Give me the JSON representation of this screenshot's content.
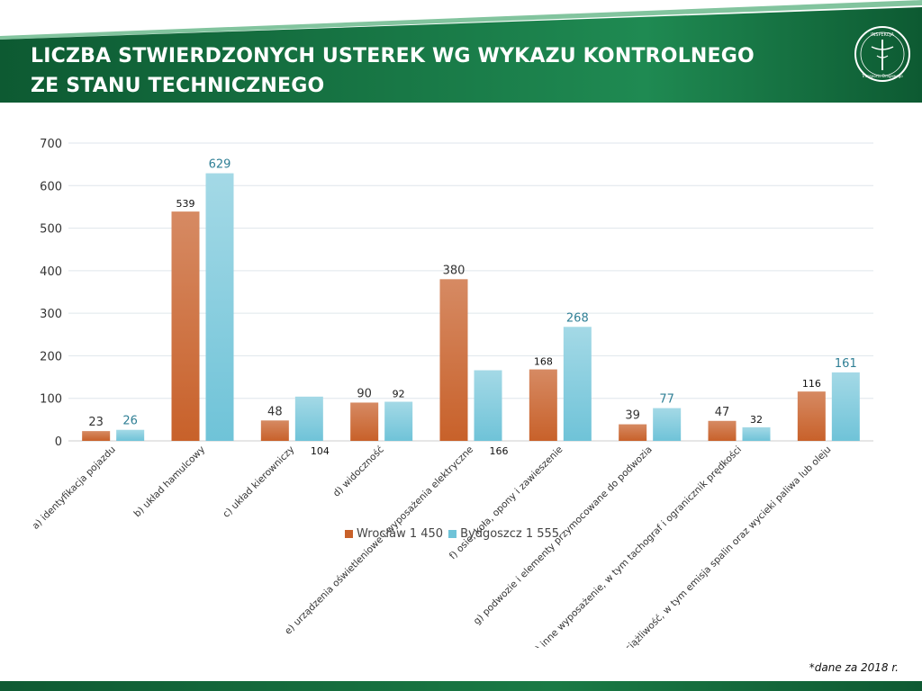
{
  "header": {
    "title_line1": "LICZBA STWIERDZONYCH USTEREK WG WYKAZU KONTROLNEGO",
    "title_line2": "ZE STANU TECHNICZNEGO",
    "logo_text_top": "INSPEKCJA",
    "logo_text_bottom": "Transportu Drogowego"
  },
  "colors": {
    "header_dark": "#0d5a32",
    "header_light": "#1f8a52",
    "wroclaw": "#c8612a",
    "bydgoszcz": "#6fc3d8"
  },
  "chart_data": {
    "type": "bar",
    "title": "LICZBA STWIERDZONYCH USTEREK WG WYKAZU KONTROLNEGO ZE STANU TECHNICZNEGO",
    "categories": [
      "a) identyfikacja pojazdu",
      "b) układ hamulcowy",
      "c) układ kierowniczy",
      "d) widoczność",
      "e) urządzenia oświetleniowe i wyposażenia elektryczne",
      "f) osie, koła, opony i zawieszenie",
      "g) podwozie i elementy przymocowane do podwozia",
      "h) inne wyposażenie, w tym tachograf i ogranicznik prędkości",
      "i) uciążliwość, w tym emisja spalin oraz wycieki paliwa lub oleju"
    ],
    "series": [
      {
        "name": "Wrocław 1 450",
        "values": [
          23,
          539,
          48,
          90,
          380,
          168,
          39,
          47,
          116
        ]
      },
      {
        "name": "Bydgoszcz 1 555",
        "values": [
          26,
          629,
          104,
          92,
          166,
          268,
          77,
          32,
          161
        ]
      }
    ],
    "ylim": [
      0,
      700
    ],
    "yticks": [
      0,
      100,
      200,
      300,
      400,
      500,
      600,
      700
    ],
    "grid": true,
    "legend_position": "bottom-center",
    "data_labels": true
  },
  "footnote": "*dane za 2018 r."
}
